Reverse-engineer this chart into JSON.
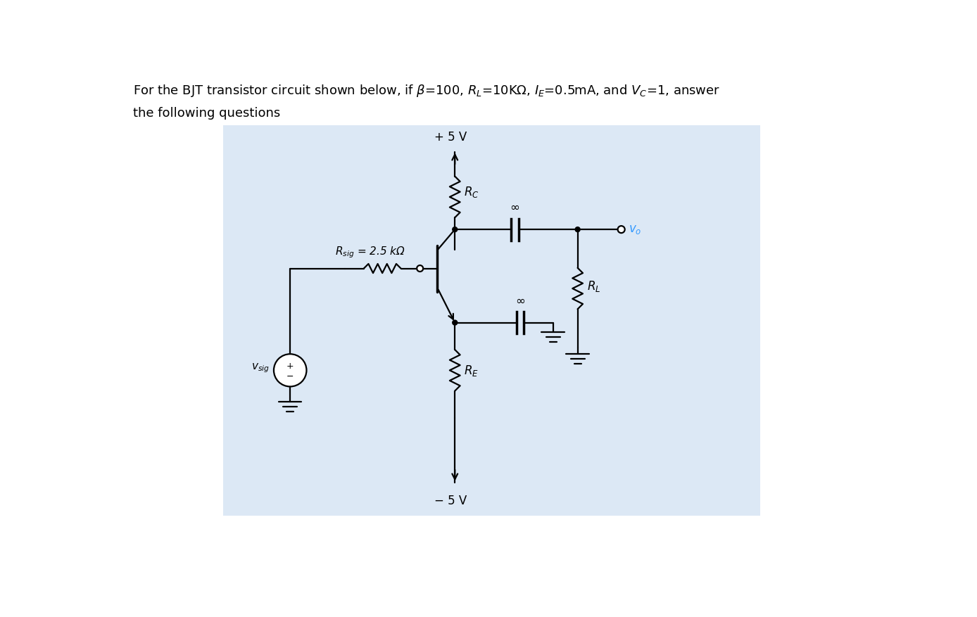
{
  "outer_bg": "#ffffff",
  "circuit_bg": "#dce8f5",
  "line_color": "#000000",
  "label_color_vo": "#3399ff",
  "title1": "For the BJT transistor circuit shown below, if β=100, R",
  "title1b": "L",
  "title1c": "=10KΩ, I",
  "title1d": "E",
  "title1e": "=0.5mA, and V",
  "title1f": "C",
  "title1g": "=1, answer",
  "title2": "the following questions",
  "plus5v": "+ 5 V",
  "minus5v": "− 5 V",
  "rc_label": "R",
  "rc_sub": "C",
  "re_label": "R",
  "re_sub": "E",
  "rl_label": "R",
  "rl_sub": "L",
  "rsig_label": "R",
  "rsig_sub": "sig",
  "rsig_val": " = 2.5 kΩ",
  "vo_label": "v",
  "vo_sub": "o",
  "vsig_label": "v",
  "vsig_sub": "sig",
  "inf_symbol": "∞",
  "lw": 1.6,
  "lw_thick": 2.5
}
